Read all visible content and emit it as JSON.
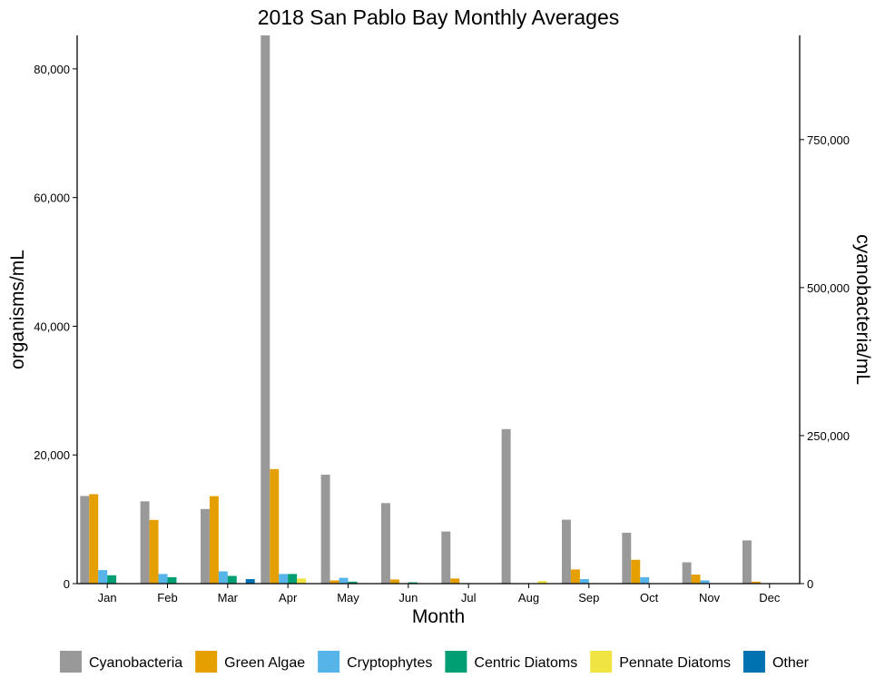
{
  "chart_data": {
    "type": "bar",
    "title": "2018 San Pablo Bay Monthly Averages",
    "xlabel": "Month",
    "ylabel": "organisms/mL",
    "y2label": "cyanobacteria/mL",
    "categories": [
      "Jan",
      "Feb",
      "Mar",
      "Apr",
      "May",
      "Jun",
      "Jul",
      "Aug",
      "Sep",
      "Oct",
      "Nov",
      "Dec"
    ],
    "ylim": [
      0,
      85200
    ],
    "y2lim": [
      0,
      926000
    ],
    "yticks": [
      0,
      20000,
      40000,
      60000,
      80000
    ],
    "ytick_labels": [
      "0",
      "20,000",
      "40,000",
      "60,000",
      "80,000"
    ],
    "y2ticks": [
      0,
      250000,
      500000,
      750000
    ],
    "y2tick_labels": [
      "0",
      "250,000",
      "500,000",
      "750,000"
    ],
    "grid": false,
    "legend_position": "bottom",
    "series": [
      {
        "name": "Cyanobacteria",
        "axis": "right",
        "color": "#999999",
        "values": [
          148000,
          139000,
          126000,
          926000,
          184000,
          136000,
          88000,
          261000,
          108000,
          86000,
          36000,
          73000
        ]
      },
      {
        "name": "Green Algae",
        "axis": "left",
        "color": "#E69F00",
        "values": [
          13900,
          9900,
          13600,
          17800,
          500,
          650,
          800,
          0,
          2200,
          3700,
          1400,
          300
        ]
      },
      {
        "name": "Cryptophytes",
        "axis": "left",
        "color": "#56B4E9",
        "values": [
          2100,
          1500,
          1900,
          1500,
          900,
          0,
          0,
          0,
          700,
          1000,
          500,
          0
        ]
      },
      {
        "name": "Centric Diatoms",
        "axis": "left",
        "color": "#009E73",
        "values": [
          1300,
          1000,
          1200,
          1500,
          300,
          200,
          0,
          0,
          0,
          0,
          0,
          0
        ]
      },
      {
        "name": "Pennate Diatoms",
        "axis": "left",
        "color": "#F0E442",
        "values": [
          0,
          0,
          0,
          800,
          0,
          0,
          0,
          400,
          0,
          0,
          0,
          0
        ]
      },
      {
        "name": "Other",
        "axis": "left",
        "color": "#0072B2",
        "values": [
          0,
          0,
          700,
          0,
          0,
          0,
          0,
          0,
          0,
          0,
          0,
          0
        ]
      }
    ]
  }
}
